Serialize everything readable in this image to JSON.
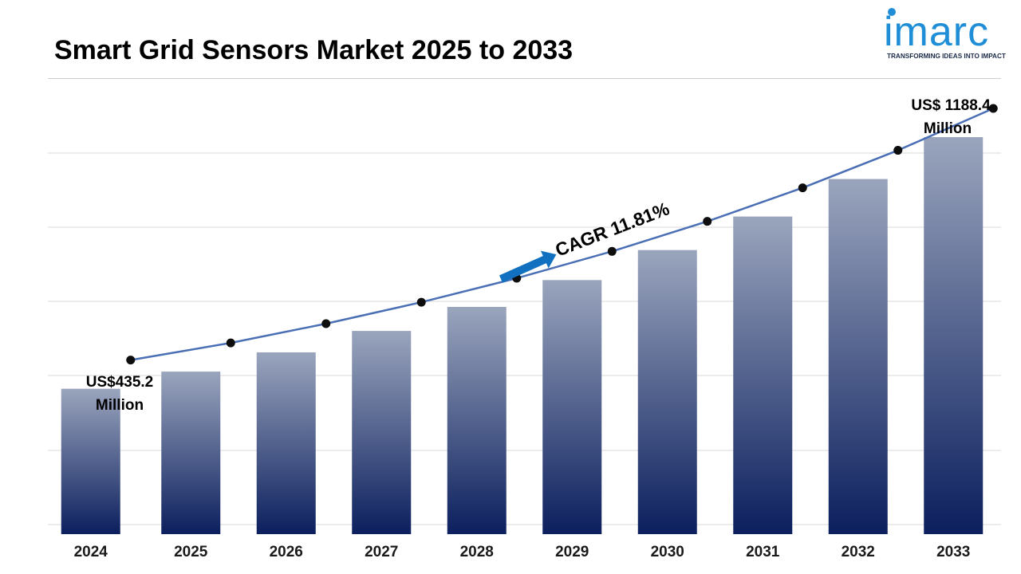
{
  "header": {
    "title": "Smart Grid Sensors Market 2025 to 2033"
  },
  "logo": {
    "wordmark": "imarc",
    "tagline": "TRANSFORMING IDEAS INTO IMPACT",
    "color": "#1f8ed6"
  },
  "chart_data": {
    "type": "bar",
    "categories": [
      "2024",
      "2025",
      "2026",
      "2027",
      "2028",
      "2029",
      "2030",
      "2031",
      "2032",
      "2033"
    ],
    "values": [
      435.2,
      486.6,
      544.1,
      608.3,
      680.2,
      760.5,
      850.3,
      950.7,
      1063.0,
      1188.4
    ],
    "unit": "US$ Million",
    "overlay_line": {
      "values": [
        435.2,
        486.6,
        544.1,
        608.3,
        680.2,
        760.5,
        850.3,
        950.7,
        1063.0,
        1188.4
      ],
      "color": "#4a6fb5",
      "marker_color": "#0d0d0d"
    },
    "annotations": {
      "start_label": [
        "US$435.2",
        "Million"
      ],
      "end_label": [
        "US$ 1188.4",
        "Million"
      ],
      "cagr": "CAGR 11.81%"
    },
    "bar_gradient": {
      "top": "#9aa5bd",
      "bottom": "#0c1f5e"
    },
    "arrow_color": "#1270c0",
    "gridlines": true,
    "xlabel": "",
    "ylabel": "",
    "ylim": [
      0,
      1500
    ]
  }
}
